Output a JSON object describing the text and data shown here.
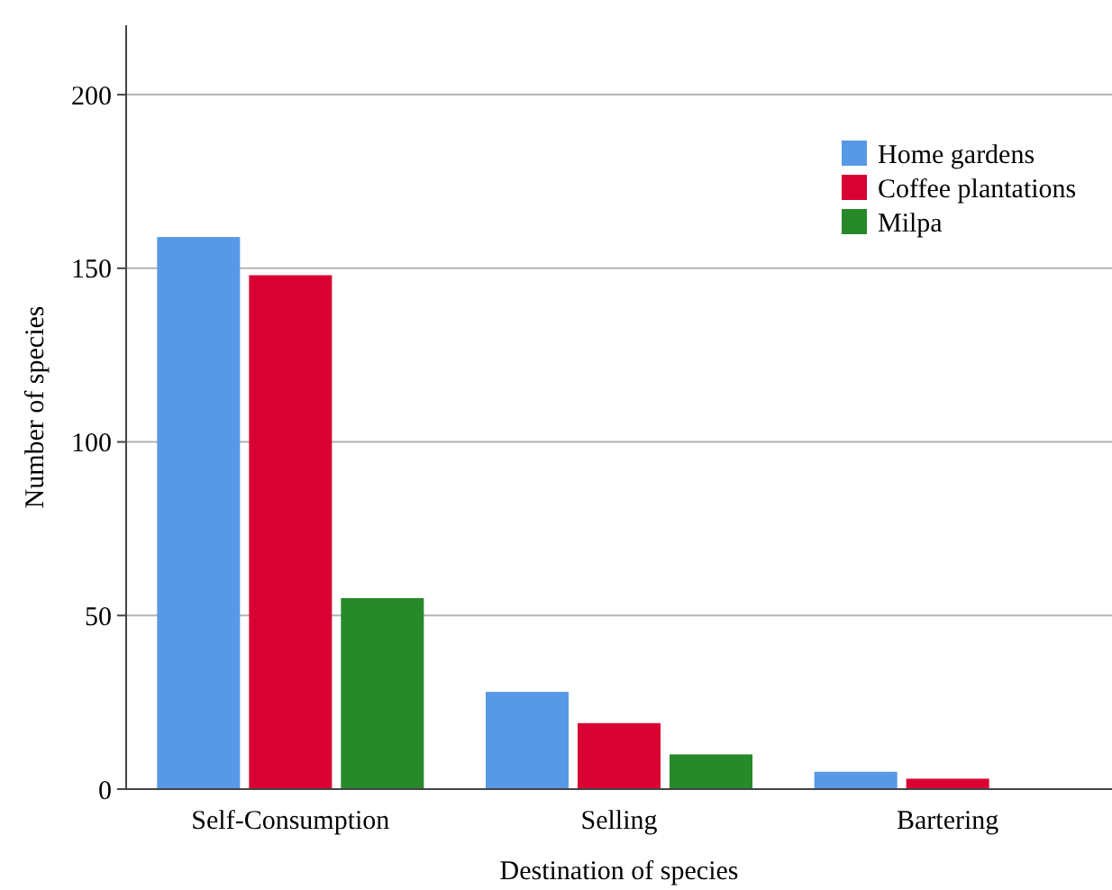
{
  "chart_data": {
    "type": "bar",
    "xlabel": "Destination of species",
    "ylabel": "Number of species",
    "categories": [
      "Self-Consumption",
      "Selling",
      "Bartering"
    ],
    "series": [
      {
        "name": "Home gardens",
        "color": "#5799e6",
        "values": [
          159,
          28,
          5
        ]
      },
      {
        "name": "Coffee plantations",
        "color": "#d90032",
        "values": [
          148,
          19,
          3
        ]
      },
      {
        "name": "Milpa",
        "color": "#27892a",
        "values": [
          55,
          10,
          0
        ]
      }
    ],
    "ylim": [
      0,
      220
    ],
    "yticks": [
      0,
      50,
      100,
      150,
      200
    ],
    "grid": "y",
    "legend": "top right"
  }
}
